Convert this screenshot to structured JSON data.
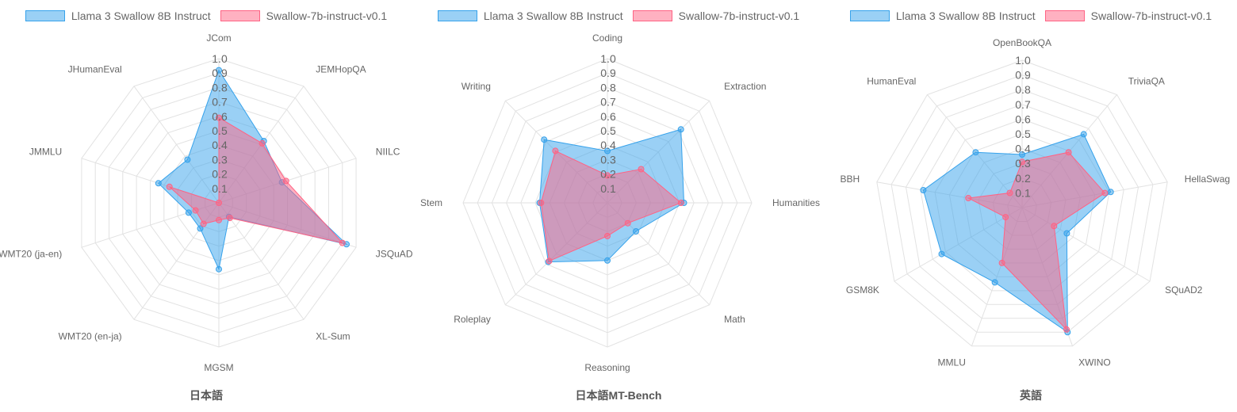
{
  "legend": {
    "series1": "Llama 3 Swallow 8B Instruct",
    "series2": "Swallow-7b-instruct-v0.1"
  },
  "colors": {
    "series1_fill": "rgba(54,162,235,0.5)",
    "series1_line": "#36a2eb",
    "series2_fill": "rgba(255,99,132,0.5)",
    "series2_line": "#ff6384",
    "grid": "#e2e2e2"
  },
  "chart_data": [
    {
      "type": "radar",
      "title": "日本語",
      "r_ticks": [
        "0.1",
        "0.2",
        "0.3",
        "0.4",
        "0.5",
        "0.6",
        "0.7",
        "0.8",
        "0.9",
        "1.0"
      ],
      "rlim": [
        0,
        1
      ],
      "categories": [
        "JCom",
        "JEMHopQA",
        "NIILC",
        "JSQuAD",
        "XL-Sum",
        "MGSM",
        "WMT20 (en-ja)",
        "WMT20 (ja-en)",
        "JMMLU",
        "JHumanEval"
      ],
      "series": [
        {
          "name": "Llama 3 Swallow 8B Instruct",
          "values": [
            0.92,
            0.53,
            0.46,
            0.93,
            0.12,
            0.46,
            0.22,
            0.22,
            0.44,
            0.37
          ]
        },
        {
          "name": "Swallow-7b-instruct-v0.1",
          "values": [
            0.59,
            0.51,
            0.49,
            0.9,
            0.13,
            0.12,
            0.18,
            0.17,
            0.36,
            0.0
          ]
        }
      ]
    },
    {
      "type": "radar",
      "title": "日本語MT-Bench",
      "r_ticks": [
        "0.1",
        "0.2",
        "0.3",
        "0.4",
        "0.5",
        "0.6",
        "0.7",
        "0.8",
        "0.9",
        "1.0"
      ],
      "rlim": [
        0,
        1
      ],
      "categories": [
        "Coding",
        "Extraction",
        "Humanities",
        "Math",
        "Reasoning",
        "Roleplay",
        "Stem",
        "Writing"
      ],
      "series": [
        {
          "name": "Llama 3 Swallow 8B Instruct",
          "values": [
            0.36,
            0.72,
            0.53,
            0.28,
            0.4,
            0.58,
            0.47,
            0.62
          ]
        },
        {
          "name": "Swallow-7b-instruct-v0.1",
          "values": [
            0.19,
            0.33,
            0.51,
            0.2,
            0.23,
            0.57,
            0.46,
            0.51
          ]
        }
      ]
    },
    {
      "type": "radar",
      "title": "英語",
      "r_ticks": [
        "0.1",
        "0.2",
        "0.3",
        "0.4",
        "0.5",
        "0.6",
        "0.7",
        "0.8",
        "0.9",
        "1.0"
      ],
      "rlim": [
        0,
        1
      ],
      "categories": [
        "OpenBookQA",
        "TriviaQA",
        "HellaSwag",
        "SQuAD2",
        "XWINO",
        "MMLU",
        "GSM8K",
        "BBH",
        "HumanEval"
      ],
      "series": [
        {
          "name": "Llama 3 Swallow 8B Instruct",
          "values": [
            0.36,
            0.65,
            0.61,
            0.35,
            0.9,
            0.54,
            0.63,
            0.68,
            0.49
          ]
        },
        {
          "name": "Swallow-7b-instruct-v0.1",
          "values": [
            0.31,
            0.49,
            0.57,
            0.25,
            0.88,
            0.4,
            0.13,
            0.37,
            0.13
          ]
        }
      ]
    }
  ]
}
